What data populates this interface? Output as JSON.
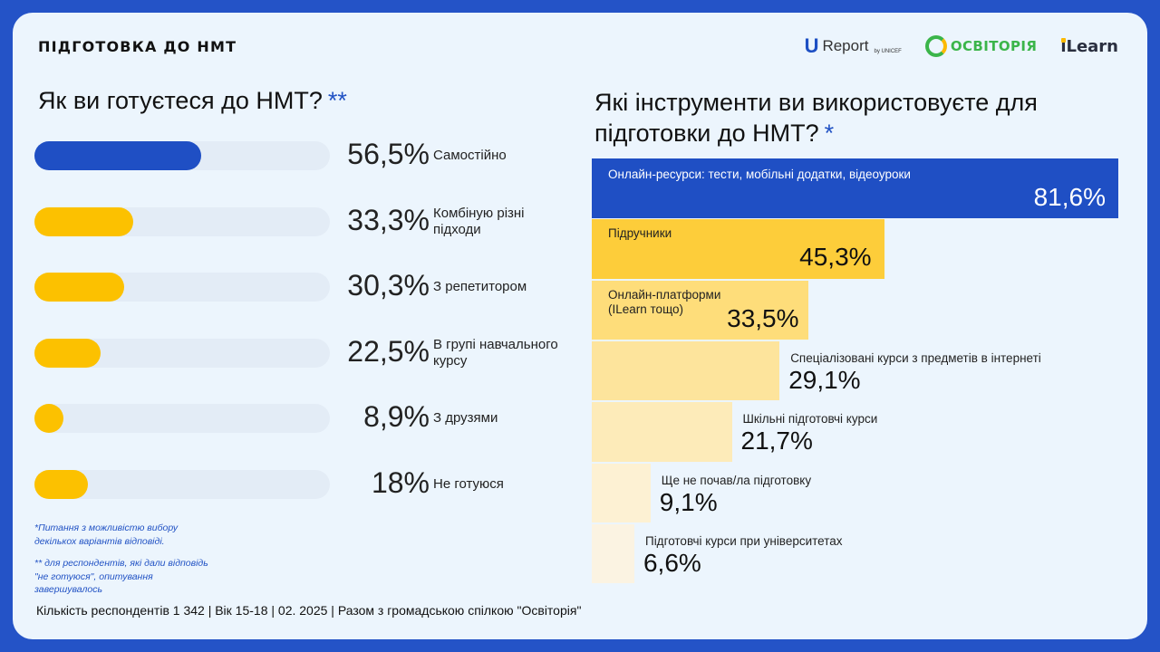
{
  "header": {
    "topic": "ПІДГОТОВКА ДО НМТ",
    "logos": [
      {
        "icon": "ureport-logo-icon",
        "text": "Report",
        "sub": "by UNICEF"
      },
      {
        "icon": "osvitoria-logo-icon",
        "text": "ОСВІТОРІЯ"
      },
      {
        "icon": "ilearn-logo-icon",
        "text": "iLearn"
      }
    ]
  },
  "colors": {
    "background": "#2453c7",
    "card": "#ecf5fd",
    "blue": "#1f4fc4",
    "yellow": "#fcc100",
    "track": "#e3ecf6"
  },
  "chart_data": [
    {
      "type": "bar",
      "title": "Як ви готуєтеся до НМТ?",
      "title_mark": "**",
      "categories": [
        "Самостійно",
        "Комбіную різні підходи",
        "З репетитором",
        "В групі навчального курсу",
        "З друзями",
        "Не готуюся"
      ],
      "values": [
        56.5,
        33.3,
        30.3,
        22.5,
        8.9,
        18
      ],
      "value_labels": [
        "56,5%",
        "33,3%",
        "30,3%",
        "22,5%",
        "8,9%",
        "18%"
      ],
      "colors": [
        "#1f4fc4",
        "#fcc100",
        "#fcc100",
        "#fcc100",
        "#fcc100",
        "#fcc100"
      ],
      "xlim": [
        0,
        100
      ],
      "unit": "%"
    },
    {
      "type": "bar",
      "title": "Які інструменти ви використовуєте для підготовки до НМТ?",
      "title_mark": "*",
      "categories": [
        "Онлайн-ресурси: тести, мобільні додатки, відеоуроки",
        "Підручники",
        "Онлайн-платформи (ILearn тощо)",
        "Спеціалізовані курси з предметів в інтернеті",
        "Шкільні підготовчі курси",
        "Ще не почав/ла підготовку",
        "Підготовчі курси при університетах"
      ],
      "values": [
        81.6,
        45.3,
        33.5,
        29.1,
        21.7,
        9.1,
        6.6
      ],
      "value_labels": [
        "81,6%",
        "45,3%",
        "33,5%",
        "29,1%",
        "21,7%",
        "9,1%",
        "6,6%"
      ],
      "colors": [
        "#1f4fc4",
        "#fdcd3a",
        "#fedd7a",
        "#fde49c",
        "#fdebb9",
        "#fdf1d3",
        "#fbf3e2"
      ],
      "xlim": [
        0,
        81.6
      ],
      "unit": "%"
    }
  ],
  "notes": [
    "*Питання з можливістю вибору декількох варіантів відповіді.",
    "** для респондентів, які дали відповідь \"не готуюся\", опитування завершувалось"
  ],
  "footer": "Кількість респондентів 1 342 | Вік 15-18 | 02. 2025 | Разом з громадською спілкою \"Освіторія\""
}
